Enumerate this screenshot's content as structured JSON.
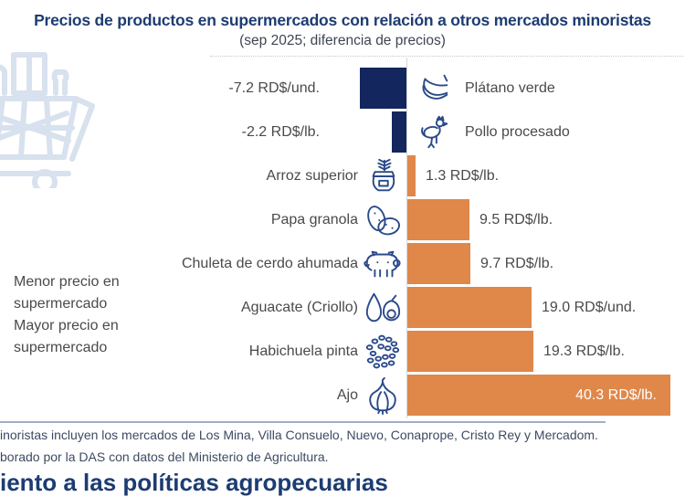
{
  "header": {
    "title": "Precios de productos en supermercados con relación a otros mercados minoristas",
    "subtitle": "(sep 2025; diferencia de precios)"
  },
  "side_note": {
    "line1": "Menor precio en",
    "line2": "supermercado",
    "line3": "Mayor precio en",
    "line4": "supermercado"
  },
  "chart_data": {
    "type": "bar",
    "orientation": "horizontal-diverging",
    "title": "Precios de productos en supermercados con relación a otros mercados minoristas",
    "subtitle": "(sep 2025; diferencia de precios)",
    "unit": "RD$",
    "xlim": [
      -10,
      43
    ],
    "grid": false,
    "negative_color": "#14265e",
    "positive_color": "#e0874a",
    "negative_meaning": "Menor precio en supermercado",
    "positive_meaning": "Mayor precio en supermercado",
    "items": [
      {
        "name": "Plátano verde",
        "value": -7.2,
        "value_label": "-7.2 RD$/und.",
        "unit": "RD$/und.",
        "icon": "banana-icon"
      },
      {
        "name": "Pollo procesado",
        "value": -2.2,
        "value_label": "-2.2 RD$/lb.",
        "unit": "RD$/lb.",
        "icon": "chicken-icon"
      },
      {
        "name": "Arroz superior",
        "value": 1.3,
        "value_label": "1.3 RD$/lb.",
        "unit": "RD$/lb.",
        "icon": "rice-icon"
      },
      {
        "name": "Papa granola",
        "value": 9.5,
        "value_label": "9.5 RD$/lb.",
        "unit": "RD$/lb.",
        "icon": "potato-icon"
      },
      {
        "name": "Chuleta de cerdo ahumada",
        "value": 9.7,
        "value_label": "9.7 RD$/lb.",
        "unit": "RD$/lb.",
        "icon": "pig-icon"
      },
      {
        "name": "Aguacate (Criollo)",
        "value": 19.0,
        "value_label": "19.0 RD$/und.",
        "unit": "RD$/und.",
        "icon": "avocado-icon"
      },
      {
        "name": "Habichuela pinta",
        "value": 19.3,
        "value_label": "19.3 RD$/lb.",
        "unit": "RD$/lb.",
        "icon": "beans-icon"
      },
      {
        "name": "Ajo",
        "value": 40.3,
        "value_label": "40.3 RD$/lb.",
        "unit": "RD$/lb.",
        "icon": "garlic-icon"
      }
    ]
  },
  "footer": {
    "note1": "inoristas incluyen los mercados de Los Mina, Villa Consuelo, Nuevo, Conaprope, Cristo Rey y Mercadom.",
    "note2": "borado por la DAS con datos del Ministerio de Agricultura.",
    "next_section_heading": "iento a las políticas agropecuarias"
  },
  "colors": {
    "title_blue": "#1d3c72",
    "negative_bar": "#14265e",
    "positive_bar": "#e0874a",
    "cart_watermark": "#d8e1ee",
    "icon_stroke": "#2b4a8a",
    "separator": "#a3aec6"
  }
}
